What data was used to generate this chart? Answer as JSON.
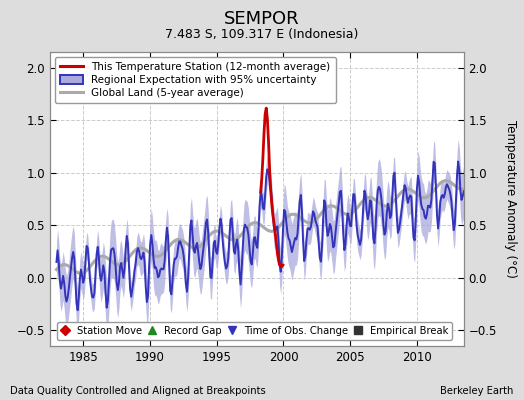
{
  "title": "SEMPOR",
  "subtitle": "7.483 S, 109.317 E (Indonesia)",
  "ylabel": "Temperature Anomaly (°C)",
  "xlabel_left": "Data Quality Controlled and Aligned at Breakpoints",
  "xlabel_right": "Berkeley Earth",
  "ylim": [
    -0.65,
    2.15
  ],
  "xlim": [
    1982.5,
    2013.5
  ],
  "yticks": [
    -0.5,
    0.0,
    0.5,
    1.0,
    1.5,
    2.0
  ],
  "xticks": [
    1985,
    1990,
    1995,
    2000,
    2005,
    2010
  ],
  "bg_color": "#dddddd",
  "plot_bg_color": "#ffffff",
  "regional_color": "#3333bb",
  "regional_fill_color": "#aaaadd",
  "station_color": "#cc0000",
  "global_color": "#aaaaaa",
  "legend2_items": [
    {
      "label": "Station Move",
      "color": "#cc0000",
      "marker": "D"
    },
    {
      "label": "Record Gap",
      "color": "#228822",
      "marker": "^"
    },
    {
      "label": "Time of Obs. Change",
      "color": "#3333bb",
      "marker": "v"
    },
    {
      "label": "Empirical Break",
      "color": "#333333",
      "marker": "s"
    }
  ],
  "time_obs_change_x": 1999.0,
  "station_x_start": 1998.25,
  "station_x_end": 2000.0
}
